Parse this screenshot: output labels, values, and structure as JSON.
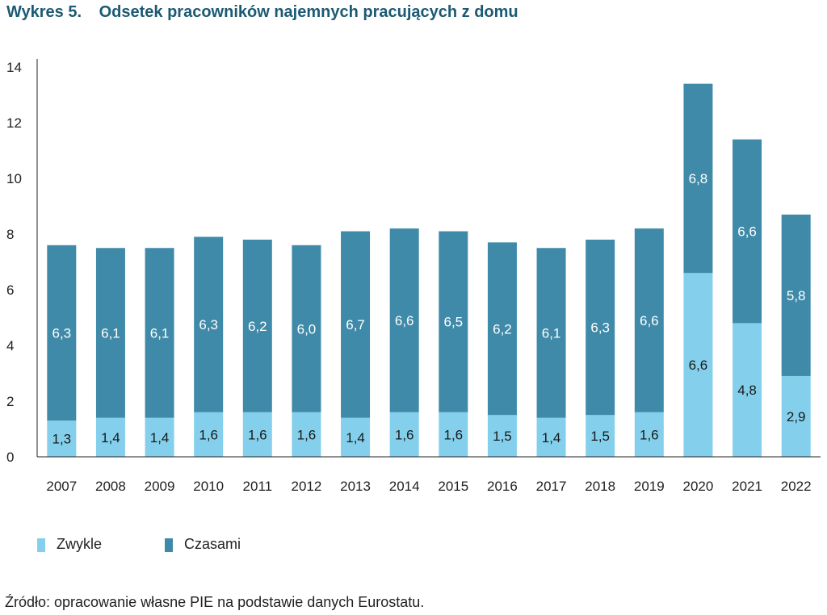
{
  "header": {
    "label": "Wykres 5.",
    "title": "Odsetek pracowników najemnych pracujących z domu"
  },
  "chart_data": {
    "type": "bar",
    "stacked": true,
    "categories": [
      "2007",
      "2008",
      "2009",
      "2010",
      "2011",
      "2012",
      "2013",
      "2014",
      "2015",
      "2016",
      "2017",
      "2018",
      "2019",
      "2020",
      "2021",
      "2022"
    ],
    "series": [
      {
        "name": "Zwykle",
        "color": "#84d0ec",
        "values": [
          1.3,
          1.4,
          1.4,
          1.6,
          1.6,
          1.6,
          1.4,
          1.6,
          1.6,
          1.5,
          1.4,
          1.5,
          1.6,
          6.6,
          4.8,
          2.9
        ],
        "labels": [
          "1,3",
          "1,4",
          "1,4",
          "1,6",
          "1,6",
          "1,6",
          "1,4",
          "1,6",
          "1,6",
          "1,5",
          "1,4",
          "1,5",
          "1,6",
          "6,6",
          "4,8",
          "2,9"
        ]
      },
      {
        "name": "Czasami",
        "color": "#408aa9",
        "values": [
          6.3,
          6.1,
          6.1,
          6.3,
          6.2,
          6.0,
          6.7,
          6.6,
          6.5,
          6.2,
          6.1,
          6.3,
          6.6,
          6.8,
          6.6,
          5.8
        ],
        "labels": [
          "6,3",
          "6,1",
          "6,1",
          "6,3",
          "6,2",
          "6,0",
          "6,7",
          "6,6",
          "6,5",
          "6,2",
          "6,1",
          "6,3",
          "6,6",
          "6,8",
          "6,6",
          "5,8"
        ]
      }
    ],
    "yticks": [
      0,
      2,
      4,
      6,
      8,
      10,
      12,
      14
    ],
    "ylim": [
      0,
      14
    ],
    "grid": false,
    "legend_position": "bottom-left"
  },
  "legend": {
    "items": [
      {
        "label": "Zwykle",
        "color": "#84d0ec"
      },
      {
        "label": "Czasami",
        "color": "#408aa9"
      }
    ]
  },
  "source": "Źródło: opracowanie własne PIE na podstawie danych Eurostatu."
}
